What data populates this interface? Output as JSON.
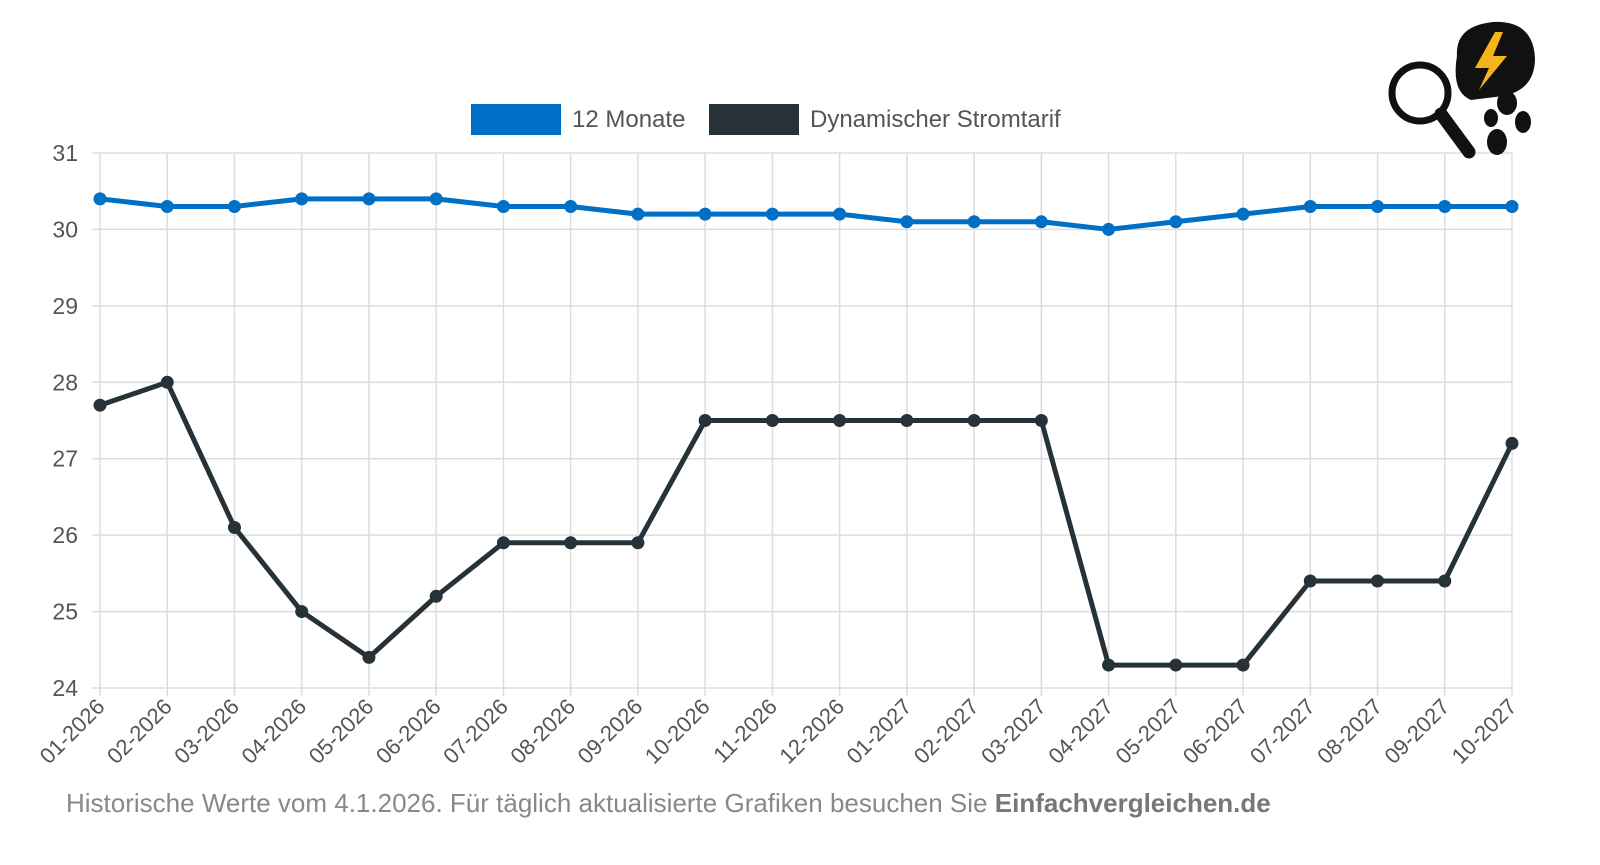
{
  "chart_data": {
    "type": "line",
    "title": "",
    "xlabel": "",
    "ylabel": "",
    "ylim": [
      24,
      31
    ],
    "yticks": [
      24,
      25,
      26,
      27,
      28,
      29,
      30,
      31
    ],
    "grid": true,
    "legend_position": "top-center",
    "categories": [
      "01-2026",
      "02-2026",
      "03-2026",
      "04-2026",
      "05-2026",
      "06-2026",
      "07-2026",
      "08-2026",
      "09-2026",
      "10-2026",
      "11-2026",
      "12-2026",
      "01-2027",
      "02-2027",
      "03-2027",
      "04-2027",
      "05-2027",
      "06-2027",
      "07-2027",
      "08-2027",
      "09-2027",
      "10-2027"
    ],
    "series": [
      {
        "name": "12 Monate",
        "color": "#0070c6",
        "values": [
          30.4,
          30.3,
          30.3,
          30.4,
          30.4,
          30.4,
          30.3,
          30.3,
          30.2,
          30.2,
          30.2,
          30.2,
          30.1,
          30.1,
          30.1,
          30.0,
          30.1,
          30.2,
          30.3,
          30.3,
          30.3,
          30.3
        ]
      },
      {
        "name": "Dynamischer Stromtarif",
        "color": "#263238",
        "values": [
          27.7,
          28.0,
          26.1,
          25.0,
          24.4,
          25.2,
          25.9,
          25.9,
          25.9,
          27.5,
          27.5,
          27.5,
          27.5,
          27.5,
          27.5,
          24.3,
          24.3,
          24.3,
          25.4,
          25.4,
          25.4,
          27.2
        ]
      }
    ]
  },
  "footer": {
    "text": "Historische Werte vom 4.1.2026. Für täglich aktualisierte Grafiken besuchen Sie ",
    "brand": "Einfachvergleichen.de"
  },
  "logo": {
    "icons": [
      "magnifier-icon",
      "lightning-icon",
      "paw-icon"
    ]
  }
}
